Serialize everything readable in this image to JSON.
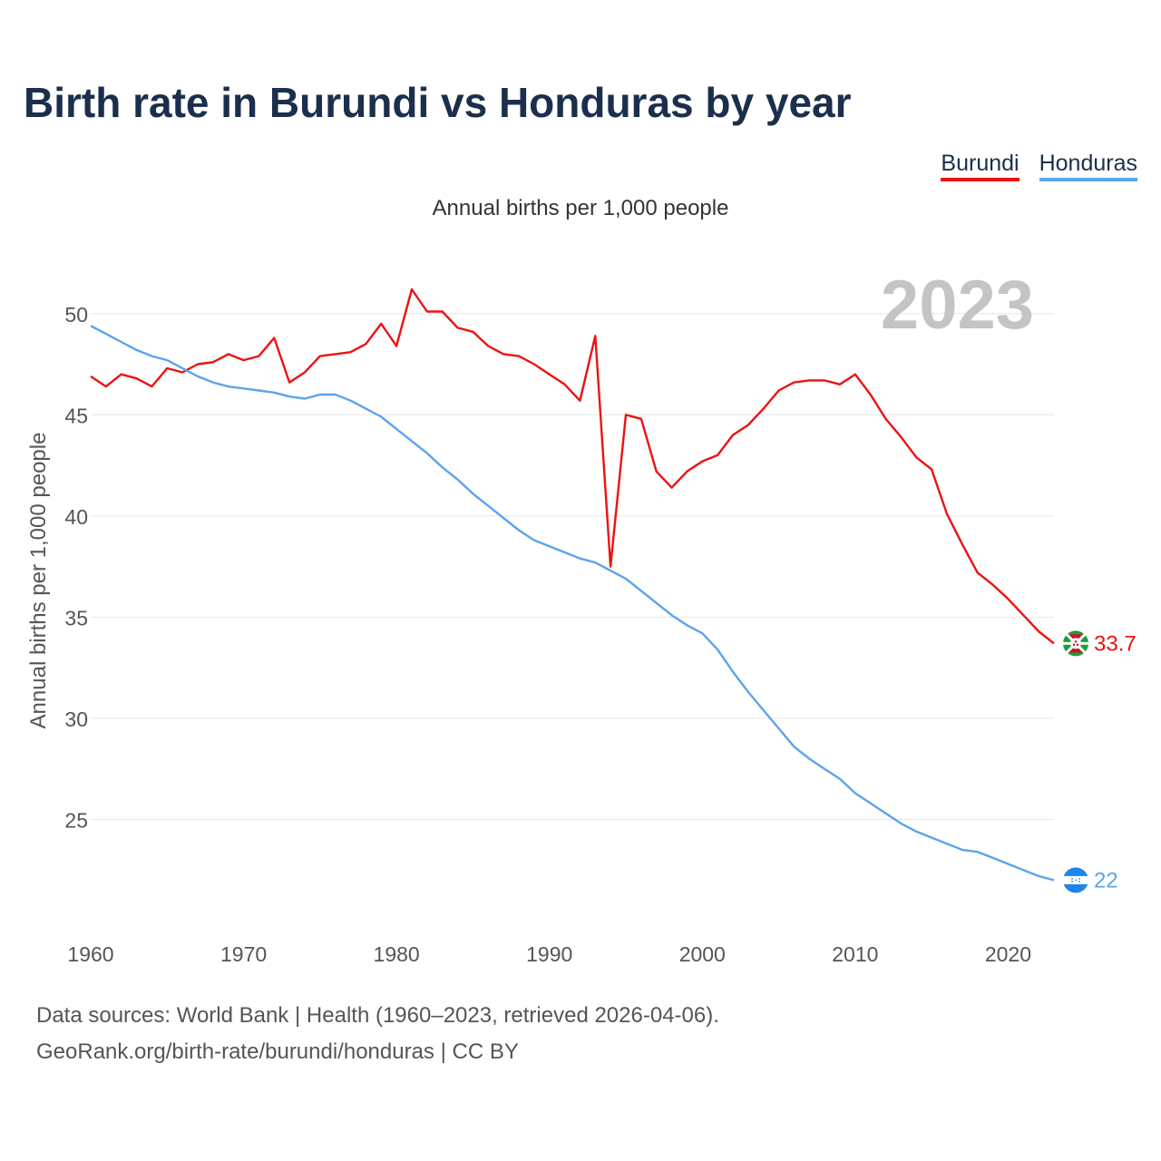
{
  "title": "Birth rate in Burundi vs Honduras by year",
  "legend": [
    {
      "label": "Burundi",
      "color": "#ee1111"
    },
    {
      "label": "Honduras",
      "color": "#5ba4ec"
    }
  ],
  "subtitle": "Annual births per 1,000 people",
  "year_label": "2023",
  "footer": {
    "source": "Data sources: World Bank | Health (1960–2023, retrieved 2026-04-06).",
    "credit": "GeoRank.org/birth-rate/burundi/honduras | CC BY"
  },
  "chart_data": {
    "type": "line",
    "title": "Birth rate in Burundi vs Honduras by year",
    "subtitle": "Annual births per 1,000 people",
    "ylabel": "Annual births per 1,000 people",
    "xlabel": "",
    "xlim": [
      1960,
      2023
    ],
    "ylim": [
      20,
      52.5
    ],
    "x_ticks": [
      1960,
      1970,
      1980,
      1990,
      2000,
      2010,
      2020
    ],
    "y_ticks": [
      25,
      30,
      35,
      40,
      45,
      50
    ],
    "grid": "horizontal",
    "legend_position": "top-right",
    "x": [
      1960,
      1961,
      1962,
      1963,
      1964,
      1965,
      1966,
      1967,
      1968,
      1969,
      1970,
      1971,
      1972,
      1973,
      1974,
      1975,
      1976,
      1977,
      1978,
      1979,
      1980,
      1981,
      1982,
      1983,
      1984,
      1985,
      1986,
      1987,
      1988,
      1989,
      1990,
      1991,
      1992,
      1993,
      1994,
      1995,
      1996,
      1997,
      1998,
      1999,
      2000,
      2001,
      2002,
      2003,
      2004,
      2005,
      2006,
      2007,
      2008,
      2009,
      2010,
      2011,
      2012,
      2013,
      2014,
      2015,
      2016,
      2017,
      2018,
      2019,
      2020,
      2021,
      2022,
      2023
    ],
    "series": [
      {
        "name": "Burundi",
        "color": "#ee1111",
        "end_label": "33.7",
        "values": [
          46.9,
          46.4,
          47.0,
          46.8,
          46.4,
          47.3,
          47.1,
          47.5,
          47.6,
          48.0,
          47.7,
          47.9,
          48.8,
          46.6,
          47.1,
          47.9,
          48.0,
          48.1,
          48.5,
          49.5,
          48.4,
          51.2,
          50.1,
          50.1,
          49.3,
          49.1,
          48.4,
          48.0,
          47.9,
          47.5,
          47.0,
          46.5,
          45.7,
          48.9,
          37.5,
          45.0,
          44.8,
          42.2,
          41.4,
          42.2,
          42.7,
          43.0,
          44.0,
          44.5,
          45.3,
          46.2,
          46.6,
          46.7,
          46.7,
          46.5,
          47.0,
          46.0,
          44.8,
          43.9,
          42.9,
          42.3,
          40.1,
          38.6,
          37.2,
          36.6,
          35.9,
          35.1,
          34.3,
          33.7
        ]
      },
      {
        "name": "Honduras",
        "color": "#5ba4ec",
        "end_label": "22",
        "values": [
          49.4,
          49.0,
          48.6,
          48.2,
          47.9,
          47.7,
          47.3,
          46.9,
          46.6,
          46.4,
          46.3,
          46.2,
          46.1,
          45.9,
          45.8,
          46.0,
          46.0,
          45.7,
          45.3,
          44.9,
          44.3,
          43.7,
          43.1,
          42.4,
          41.8,
          41.1,
          40.5,
          39.9,
          39.3,
          38.8,
          38.5,
          38.2,
          37.9,
          37.7,
          37.3,
          36.9,
          36.3,
          35.7,
          35.1,
          34.6,
          34.2,
          33.4,
          32.3,
          31.3,
          30.4,
          29.5,
          28.6,
          28.0,
          27.5,
          27.0,
          26.3,
          25.8,
          25.3,
          24.8,
          24.4,
          24.1,
          23.8,
          23.5,
          23.4,
          23.1,
          22.8,
          22.5,
          22.2,
          22.0
        ]
      }
    ]
  }
}
